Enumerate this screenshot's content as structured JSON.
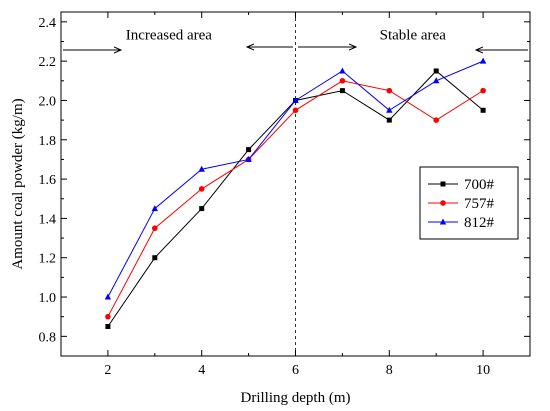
{
  "chart_data": {
    "type": "line",
    "xlabel": "Drilling depth (m)",
    "ylabel": "Amount coal powder (kg/m)",
    "xlim": [
      1,
      11
    ],
    "ylim": [
      0.7,
      2.45
    ],
    "xticks": [
      2,
      4,
      6,
      8,
      10
    ],
    "yticks": [
      0.8,
      1.0,
      1.2,
      1.4,
      1.6,
      1.8,
      2.0,
      2.2,
      2.4
    ],
    "xtick_labels": [
      "2",
      "4",
      "6",
      "8",
      "10"
    ],
    "ytick_labels": [
      "0.8",
      "1.0",
      "1.2",
      "1.4",
      "1.6",
      "1.8",
      "2.0",
      "2.2",
      "2.4"
    ],
    "x": [
      2,
      3,
      4,
      5,
      6,
      7,
      8,
      9,
      10
    ],
    "series": [
      {
        "name": "700#",
        "color": "#000000",
        "marker": "square",
        "values": [
          0.85,
          1.2,
          1.45,
          1.75,
          2.0,
          2.05,
          1.9,
          2.15,
          1.95
        ]
      },
      {
        "name": "757#",
        "color": "#ff0000",
        "marker": "circle",
        "values": [
          0.9,
          1.35,
          1.55,
          1.7,
          1.95,
          2.1,
          2.05,
          1.9,
          2.05
        ]
      },
      {
        "name": "812#",
        "color": "#0000ff",
        "marker": "triangle",
        "values": [
          1.0,
          1.45,
          1.65,
          1.7,
          2.0,
          2.15,
          1.95,
          2.1,
          2.2
        ]
      }
    ],
    "legend_position": "right-middle",
    "divider_x": 6,
    "annotations": [
      {
        "text": "Increased area",
        "x": 3.3,
        "y": 2.31
      },
      {
        "text": "Stable area",
        "x": 8.5,
        "y": 2.31
      }
    ],
    "grid": false
  }
}
